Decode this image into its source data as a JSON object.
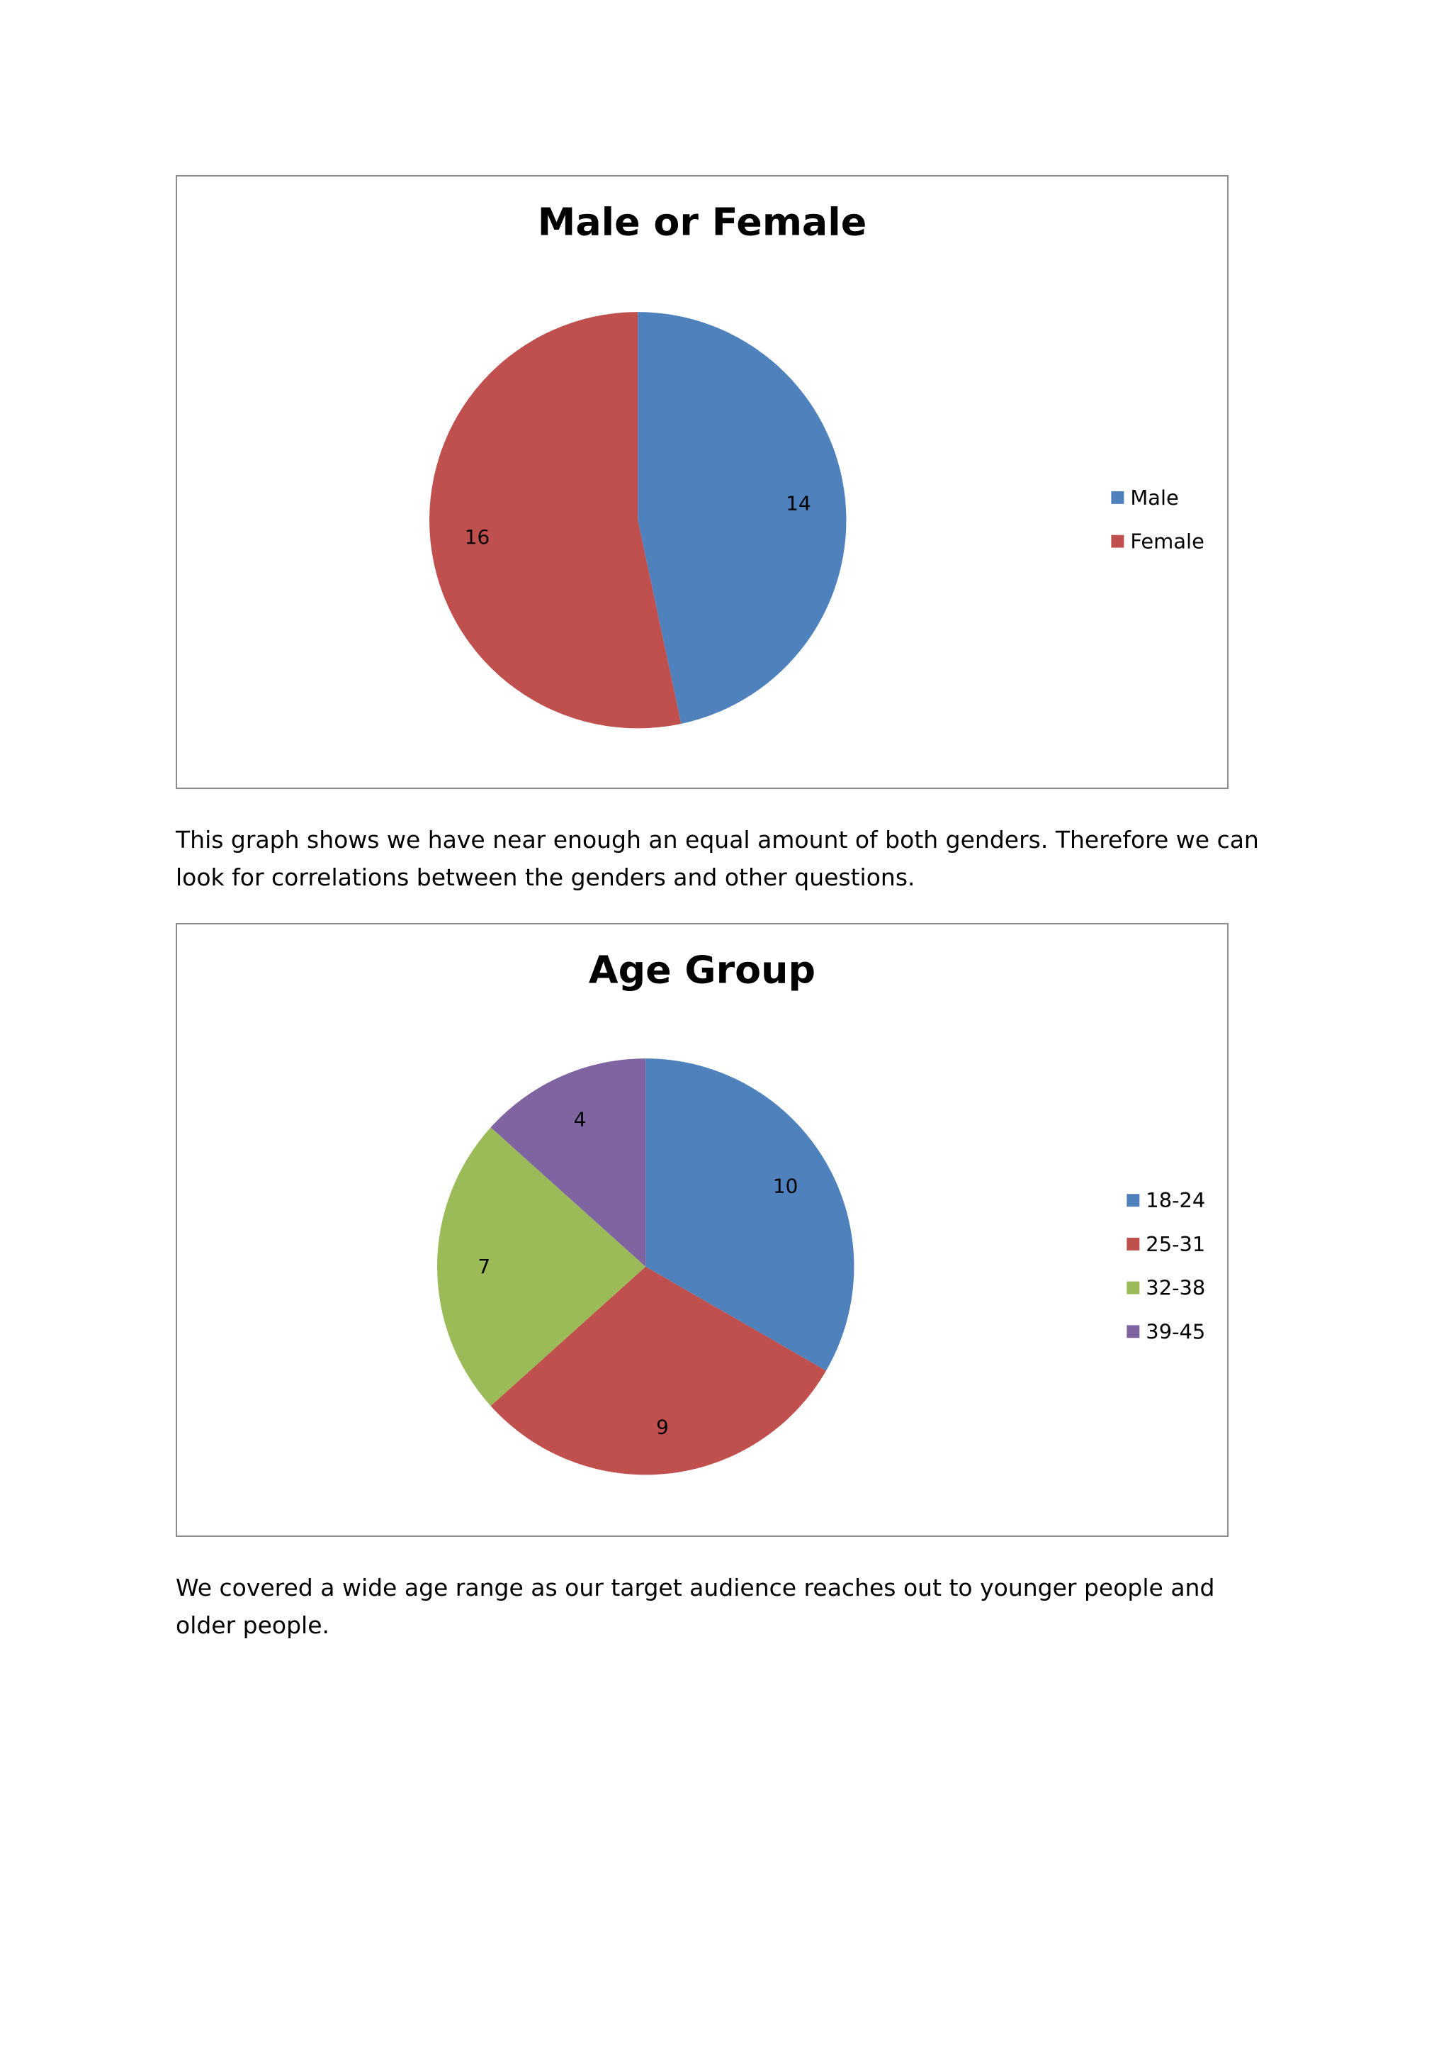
{
  "chart_data": [
    {
      "type": "pie",
      "title": "Male or Female",
      "categories": [
        "Male",
        "Female"
      ],
      "values": [
        14,
        16
      ],
      "colors": [
        "#4F81BD",
        "#C0504D"
      ],
      "data_labels": true,
      "legend": "right"
    },
    {
      "type": "pie",
      "title": "Age Group",
      "categories": [
        "18-24",
        "25-31",
        "32-38",
        "39-45"
      ],
      "values": [
        10,
        9,
        7,
        4
      ],
      "colors": [
        "#4F81BD",
        "#C0504D",
        "#9BBB59",
        "#8064A2"
      ],
      "data_labels": true,
      "legend": "right"
    }
  ],
  "paragraphs": {
    "gender": "This graph shows we have near enough an equal amount of both genders. Therefore we can look for correlations between the genders and other questions.",
    "age": "We covered a wide age range as our target audience reaches out to younger people and older people."
  }
}
